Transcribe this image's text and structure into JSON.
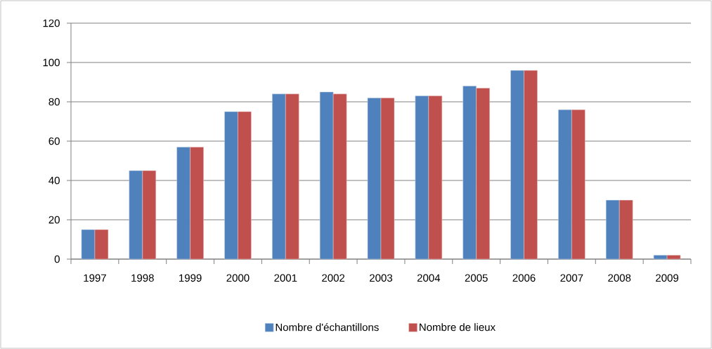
{
  "chart_data": {
    "type": "bar",
    "categories": [
      "1997",
      "1998",
      "1999",
      "2000",
      "2001",
      "2002",
      "2003",
      "2004",
      "2005",
      "2006",
      "2007",
      "2008",
      "2009"
    ],
    "series": [
      {
        "name": "Nombre d'échantillons",
        "color": "#4f81bd",
        "values": [
          15,
          45,
          57,
          75,
          84,
          85,
          82,
          83,
          88,
          96,
          76,
          30,
          2
        ]
      },
      {
        "name": "Nombre de lieux",
        "color": "#c0504d",
        "values": [
          15,
          45,
          57,
          75,
          84,
          84,
          82,
          83,
          87,
          96,
          76,
          30,
          2
        ]
      }
    ],
    "ylim": [
      0,
      120
    ],
    "yticks": [
      0,
      20,
      40,
      60,
      80,
      100,
      120
    ],
    "grid": "y",
    "legend": "bottom"
  }
}
